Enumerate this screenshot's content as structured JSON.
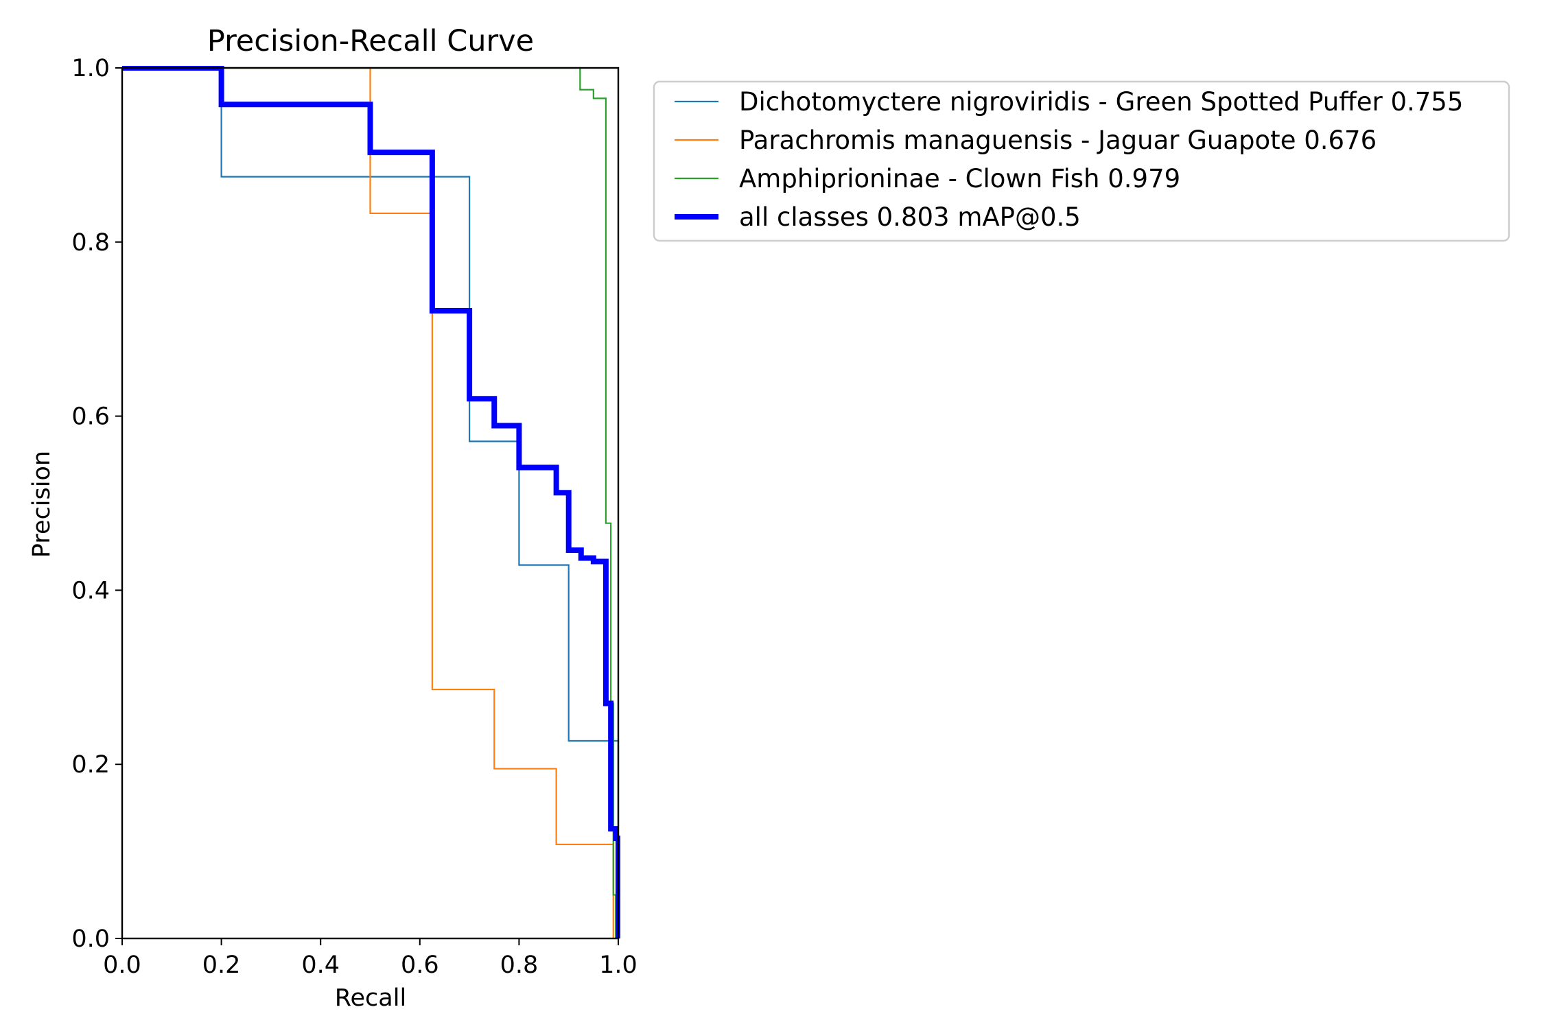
{
  "chart_data": {
    "type": "line",
    "title": "Precision-Recall Curve",
    "xlabel": "Recall",
    "ylabel": "Precision",
    "xlim": [
      0.0,
      1.0
    ],
    "ylim": [
      0.0,
      1.0
    ],
    "x_ticks": [
      "0.0",
      "0.2",
      "0.4",
      "0.6",
      "0.8",
      "1.0"
    ],
    "y_ticks": [
      "0.0",
      "0.2",
      "0.4",
      "0.6",
      "0.8",
      "1.0"
    ],
    "grid": false,
    "legend_position": "outside-right-top",
    "series": [
      {
        "name": "Dichotomyctere nigroviridis - Green Spotted Puffer 0.755",
        "color": "#1f77b4",
        "line_width": "thin",
        "points": [
          [
            0.0,
            1.0
          ],
          [
            0.2,
            1.0
          ],
          [
            0.2,
            0.875
          ],
          [
            0.7,
            0.875
          ],
          [
            0.7,
            0.571
          ],
          [
            0.8,
            0.571
          ],
          [
            0.8,
            0.429
          ],
          [
            0.9,
            0.429
          ],
          [
            0.9,
            0.227
          ],
          [
            1.0,
            0.227
          ],
          [
            1.0,
            0.0
          ]
        ]
      },
      {
        "name": "Parachromis managuensis - Jaguar Guapote 0.676",
        "color": "#ff7f0e",
        "line_width": "thin",
        "points": [
          [
            0.0,
            1.0
          ],
          [
            0.5,
            1.0
          ],
          [
            0.5,
            0.833
          ],
          [
            0.625,
            0.833
          ],
          [
            0.625,
            0.286
          ],
          [
            0.75,
            0.286
          ],
          [
            0.75,
            0.195
          ],
          [
            0.875,
            0.195
          ],
          [
            0.875,
            0.108
          ],
          [
            0.99,
            0.108
          ],
          [
            0.99,
            0.0
          ]
        ]
      },
      {
        "name": "Amphiprioninae - Clown Fish 0.979",
        "color": "#2ca02c",
        "line_width": "thin",
        "points": [
          [
            0.0,
            1.0
          ],
          [
            0.923,
            1.0
          ],
          [
            0.923,
            0.975
          ],
          [
            0.95,
            0.975
          ],
          [
            0.95,
            0.965
          ],
          [
            0.975,
            0.965
          ],
          [
            0.975,
            0.477
          ],
          [
            0.985,
            0.477
          ],
          [
            0.985,
            0.27
          ],
          [
            0.99,
            0.27
          ],
          [
            0.99,
            0.05
          ],
          [
            0.995,
            0.05
          ],
          [
            0.995,
            0.0
          ]
        ]
      },
      {
        "name": "all classes 0.803 mAP@0.5",
        "color": "#0000ff",
        "line_width": "thick",
        "points": [
          [
            0.0,
            1.0
          ],
          [
            0.2,
            1.0
          ],
          [
            0.2,
            0.958
          ],
          [
            0.5,
            0.958
          ],
          [
            0.5,
            0.903
          ],
          [
            0.625,
            0.903
          ],
          [
            0.625,
            0.721
          ],
          [
            0.7,
            0.721
          ],
          [
            0.7,
            0.62
          ],
          [
            0.75,
            0.62
          ],
          [
            0.75,
            0.589
          ],
          [
            0.8,
            0.589
          ],
          [
            0.8,
            0.541
          ],
          [
            0.875,
            0.541
          ],
          [
            0.875,
            0.512
          ],
          [
            0.9,
            0.512
          ],
          [
            0.9,
            0.446
          ],
          [
            0.925,
            0.446
          ],
          [
            0.925,
            0.437
          ],
          [
            0.95,
            0.437
          ],
          [
            0.95,
            0.433
          ],
          [
            0.975,
            0.433
          ],
          [
            0.975,
            0.27
          ],
          [
            0.985,
            0.27
          ],
          [
            0.985,
            0.126
          ],
          [
            0.995,
            0.126
          ],
          [
            0.995,
            0.115
          ],
          [
            1.0,
            0.115
          ],
          [
            1.0,
            0.0
          ]
        ]
      }
    ]
  }
}
